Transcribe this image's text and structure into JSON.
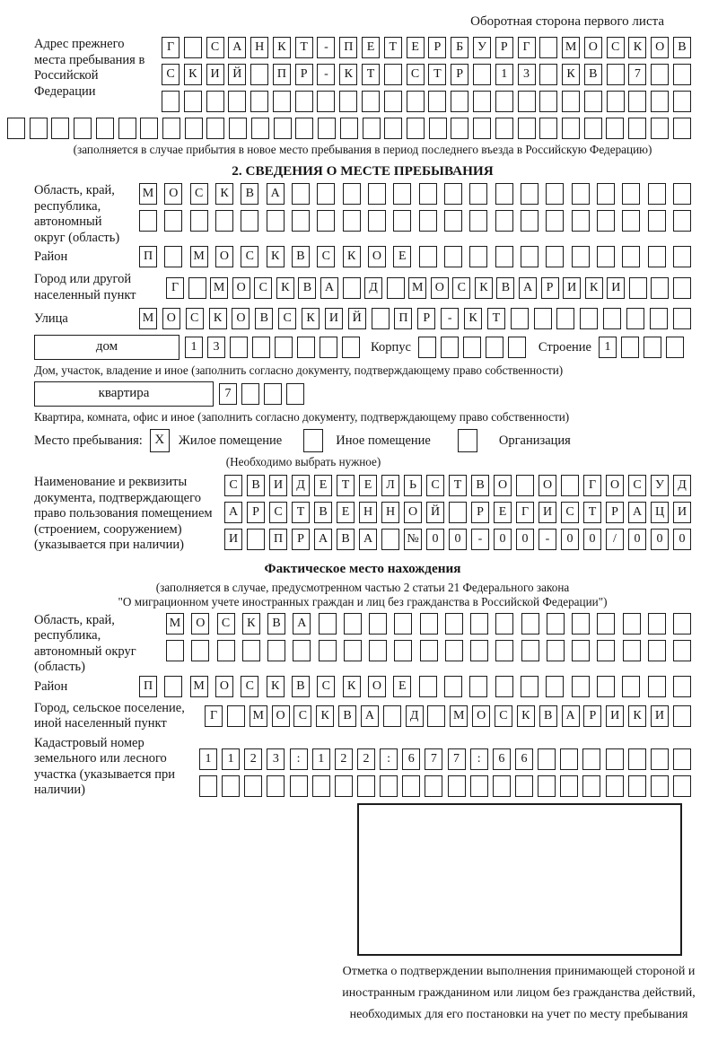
{
  "colors": {
    "ink": "#1c1c1c",
    "background": "#ffffff"
  },
  "page": {
    "header_note": "Оборотная сторона первого листа"
  },
  "prev_address": {
    "label": "Адрес прежнего места пребывания в Российской Федерации",
    "rows": [
      [
        "Г",
        "",
        "С",
        "А",
        "Н",
        "К",
        "Т",
        "-",
        "П",
        "Е",
        "Т",
        "Е",
        "Р",
        "Б",
        "У",
        "Р",
        "Г",
        "",
        "М",
        "О",
        "С",
        "К",
        "О",
        "В"
      ],
      [
        "С",
        "К",
        "И",
        "Й",
        "",
        "П",
        "Р",
        "-",
        "К",
        "Т",
        "",
        "С",
        "Т",
        "Р",
        "",
        "1",
        "3",
        "",
        "К",
        "В",
        "",
        "7",
        "",
        ""
      ],
      [
        "",
        "",
        "",
        "",
        "",
        "",
        "",
        "",
        "",
        "",
        "",
        "",
        "",
        "",
        "",
        "",
        "",
        "",
        "",
        "",
        "",
        "",
        "",
        ""
      ],
      [
        "",
        "",
        "",
        "",
        "",
        "",
        "",
        "",
        "",
        "",
        "",
        "",
        "",
        "",
        "",
        "",
        "",
        "",
        "",
        "",
        "",
        "",
        "",
        "",
        "",
        "",
        "",
        "",
        "",
        "",
        ""
      ]
    ],
    "note": "(заполняется в случае прибытия в новое место пребывания в период последнего въезда в Российскую Федерацию)"
  },
  "section2": {
    "title": "2. СВЕДЕНИЯ О МЕСТЕ ПРЕБЫВАНИЯ",
    "region": {
      "label": "Область, край, республика, автономный округ (область)",
      "rows": [
        [
          "М",
          "О",
          "С",
          "К",
          "В",
          "А",
          "",
          "",
          "",
          "",
          "",
          "",
          "",
          "",
          "",
          "",
          "",
          "",
          "",
          "",
          "",
          ""
        ],
        [
          "",
          "",
          "",
          "",
          "",
          "",
          "",
          "",
          "",
          "",
          "",
          "",
          "",
          "",
          "",
          "",
          "",
          "",
          "",
          "",
          "",
          ""
        ]
      ]
    },
    "district": {
      "label": "Район",
      "row": [
        "П",
        "",
        "М",
        "О",
        "С",
        "К",
        "В",
        "С",
        "К",
        "О",
        "Е",
        "",
        "",
        "",
        "",
        "",
        "",
        "",
        "",
        "",
        "",
        ""
      ]
    },
    "city": {
      "label": "Город или другой населенный пункт",
      "row": [
        "Г",
        "",
        "М",
        "О",
        "С",
        "К",
        "В",
        "А",
        "",
        "Д",
        "",
        "М",
        "О",
        "С",
        "К",
        "В",
        "А",
        "Р",
        "И",
        "К",
        "И",
        "",
        "",
        ""
      ]
    },
    "street": {
      "label": "Улица",
      "row": [
        "М",
        "О",
        "С",
        "К",
        "О",
        "В",
        "С",
        "К",
        "И",
        "Й",
        "",
        "П",
        "Р",
        "-",
        "К",
        "Т",
        "",
        "",
        "",
        "",
        "",
        "",
        "",
        ""
      ]
    },
    "house": {
      "box_label": "дом",
      "number_cells": [
        "1",
        "3",
        "",
        "",
        "",
        "",
        "",
        ""
      ],
      "korpus_label": "Корпус",
      "korpus_cells": [
        "",
        "",
        "",
        "",
        ""
      ],
      "stroenie_label": "Строение",
      "stroenie_cells": [
        "1",
        "",
        "",
        ""
      ]
    },
    "house_note": "Дом, участок, владение и иное (заполнить согласно документу, подтверждающему право собственности)",
    "apartment": {
      "box_label": "квартира",
      "cells": [
        "7",
        "",
        "",
        ""
      ]
    },
    "apartment_note": "Квартира, комната, офис и иное (заполнить согласно документу, подтверждающему право собственности)",
    "stay_type": {
      "label": "Место пребывания:",
      "options": [
        {
          "label": "Жилое помещение",
          "mark": "X"
        },
        {
          "label": "Иное помещение",
          "mark": ""
        },
        {
          "label": "Организация",
          "mark": ""
        }
      ],
      "note": "(Необходимо выбрать нужное)"
    },
    "document": {
      "label": "Наименование и реквизиты документа, подтверждающего право пользования помещением (строением, сооружением) (указывается при наличии)",
      "rows": [
        [
          "С",
          "В",
          "И",
          "Д",
          "Е",
          "Т",
          "Е",
          "Л",
          "Ь",
          "С",
          "Т",
          "В",
          "О",
          "",
          "О",
          "",
          "Г",
          "О",
          "С",
          "У",
          "Д"
        ],
        [
          "А",
          "Р",
          "С",
          "Т",
          "В",
          "Е",
          "Н",
          "Н",
          "О",
          "Й",
          "",
          "Р",
          "Е",
          "Г",
          "И",
          "С",
          "Т",
          "Р",
          "А",
          "Ц",
          "И"
        ],
        [
          "И",
          "",
          "П",
          "Р",
          "А",
          "В",
          "А",
          "",
          "№",
          "0",
          "0",
          "-",
          "0",
          "0",
          "-",
          "0",
          "0",
          "/",
          "0",
          "0",
          "0"
        ]
      ]
    }
  },
  "actual_location": {
    "title": "Фактическое место нахождения",
    "note_line1": "(заполняется в случае, предусмотренном частью 2 статьи 21 Федерального закона",
    "note_line2": "\"О миграционном учете иностранных граждан и лиц без гражданства в Российской Федерации\")",
    "region": {
      "label": "Область, край, республика, автономный округ (область)",
      "rows": [
        [
          "М",
          "О",
          "С",
          "К",
          "В",
          "А",
          "",
          "",
          "",
          "",
          "",
          "",
          "",
          "",
          "",
          "",
          "",
          "",
          "",
          "",
          ""
        ],
        [
          "",
          "",
          "",
          "",
          "",
          "",
          "",
          "",
          "",
          "",
          "",
          "",
          "",
          "",
          "",
          "",
          "",
          "",
          "",
          "",
          ""
        ]
      ]
    },
    "district": {
      "label": "Район",
      "row": [
        "П",
        "",
        "М",
        "О",
        "С",
        "К",
        "В",
        "С",
        "К",
        "О",
        "Е",
        "",
        "",
        "",
        "",
        "",
        "",
        "",
        "",
        "",
        "",
        ""
      ]
    },
    "city": {
      "label": "Город, сельское поселение, иной населенный пункт",
      "row": [
        "Г",
        "",
        "М",
        "О",
        "С",
        "К",
        "В",
        "А",
        "",
        "Д",
        "",
        "М",
        "О",
        "С",
        "К",
        "В",
        "А",
        "Р",
        "И",
        "К",
        "И",
        ""
      ]
    },
    "cadastral": {
      "label": "Кадастровый номер земельного или лесного участка (указывается при наличии)",
      "rows": [
        [
          "1",
          "1",
          "2",
          "3",
          ":",
          "1",
          "2",
          "2",
          ":",
          "6",
          "7",
          "7",
          ":",
          "6",
          "6",
          "",
          "",
          "",
          "",
          "",
          "",
          ""
        ],
        [
          "",
          "",
          "",
          "",
          "",
          "",
          "",
          "",
          "",
          "",
          "",
          "",
          "",
          "",
          "",
          "",
          "",
          "",
          "",
          "",
          "",
          ""
        ]
      ]
    }
  },
  "stamp": {
    "caption": "Отметка о подтверждении выполнения принимающей стороной и иностранным гражданином или лицом без гражданства действий, необходимых для его постановки на учет по месту пребывания"
  }
}
